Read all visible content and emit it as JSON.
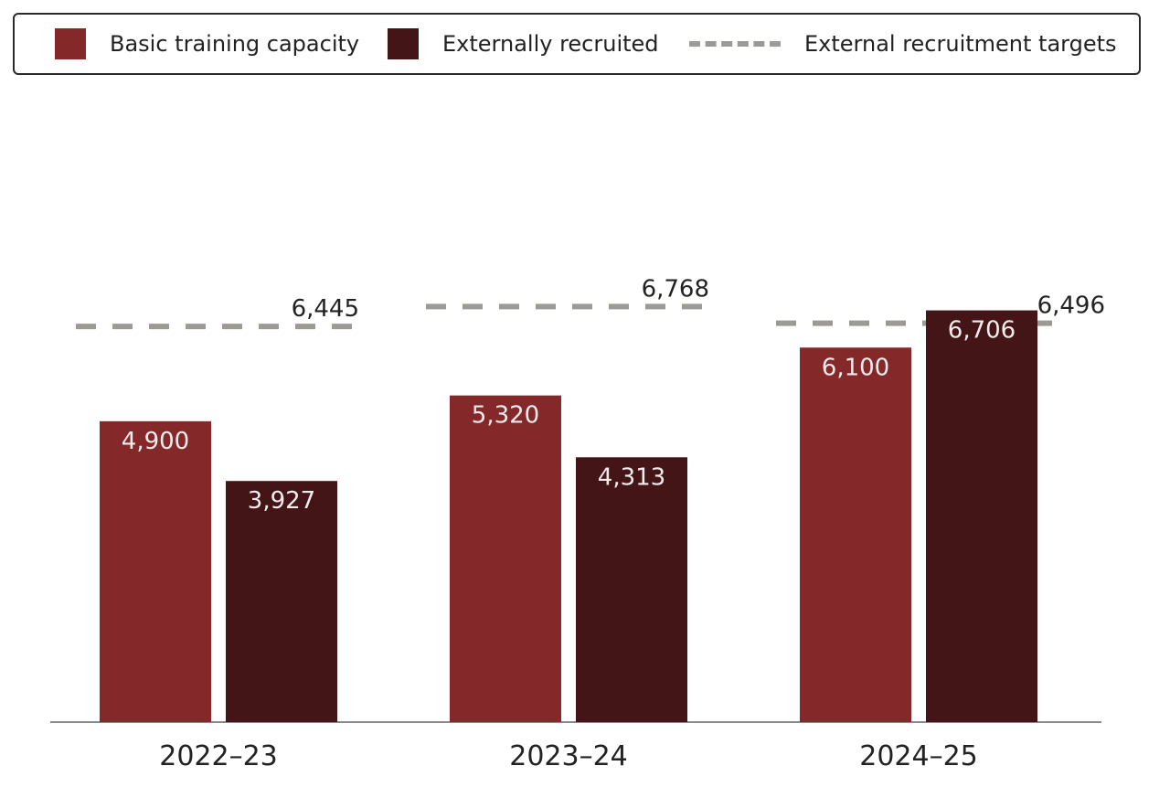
{
  "colors": {
    "basic_training": "#85282a",
    "external": "#431516",
    "target": "#9b9a94",
    "axis": "#8a8a8a"
  },
  "legend": {
    "items": [
      {
        "label": "Basic training capacity",
        "kind": "swatch",
        "color": "#85282a"
      },
      {
        "label": "Externally recruited",
        "kind": "swatch",
        "color": "#431516"
      },
      {
        "label": "External recruitment targets",
        "kind": "dash",
        "color": "#9b9a94"
      }
    ],
    "placement": "top"
  },
  "chart_data": {
    "type": "bar",
    "categories": [
      "2022–23",
      "2023–24",
      "2024–25"
    ],
    "series": [
      {
        "name": "Basic training capacity",
        "values": [
          4900,
          5320,
          6100
        ],
        "labels": [
          "4,900",
          "5,320",
          "6,100"
        ]
      },
      {
        "name": "Externally recruited",
        "values": [
          3927,
          4313,
          6706
        ],
        "labels": [
          "3,927",
          "4,313",
          "6,706"
        ]
      }
    ],
    "targets": {
      "name": "External recruitment targets",
      "values": [
        6445,
        6768,
        6496
      ],
      "labels": [
        "6,445",
        "6,768",
        "6,496"
      ]
    },
    "title": "",
    "xlabel": "",
    "ylabel": "",
    "ylim": [
      0,
      8500
    ],
    "grid": false
  }
}
